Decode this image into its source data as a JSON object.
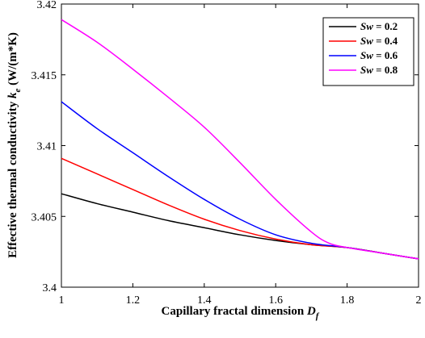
{
  "chart_data": {
    "type": "line",
    "xlabel": {
      "main": "Capillary fractal dimension ",
      "symbol": "D",
      "sub": "f"
    },
    "ylabel": {
      "main": "Effective thermal conductivity ",
      "symbol": "k",
      "sub": "e",
      "unit": " (W/(m*K)"
    },
    "xlim": [
      1,
      2
    ],
    "ylim": [
      3.4,
      3.42
    ],
    "xticks": [
      "1",
      "1.2",
      "1.4",
      "1.6",
      "1.8",
      "2"
    ],
    "yticks": [
      "3.4",
      "3.405",
      "3.41",
      "3.415",
      "3.42"
    ],
    "legend_position": "top-right",
    "series": [
      {
        "name": "Sw = 0.2",
        "label_var": "Sw",
        "label_val": " = 0.2",
        "color": "#000000",
        "x": [
          1.0,
          1.1,
          1.2,
          1.3,
          1.4,
          1.5,
          1.6,
          1.7,
          1.8,
          1.9,
          2.0
        ],
        "y": [
          3.4066,
          3.4059,
          3.4053,
          3.4047,
          3.4042,
          3.4037,
          3.4033,
          3.403,
          3.4028,
          3.4024,
          3.402
        ]
      },
      {
        "name": "Sw = 0.4",
        "label_var": "Sw",
        "label_val": " = 0.4",
        "color": "#ff0000",
        "x": [
          1.0,
          1.1,
          1.2,
          1.3,
          1.4,
          1.5,
          1.6,
          1.7,
          1.8,
          1.9,
          2.0
        ],
        "y": [
          3.4091,
          3.408,
          3.4069,
          3.4058,
          3.4048,
          3.404,
          3.4034,
          3.403,
          3.4028,
          3.4024,
          3.402
        ]
      },
      {
        "name": "Sw = 0.6",
        "label_var": "Sw",
        "label_val": " = 0.6",
        "color": "#0000ff",
        "x": [
          1.0,
          1.1,
          1.2,
          1.3,
          1.4,
          1.5,
          1.6,
          1.7,
          1.8,
          1.9,
          2.0
        ],
        "y": [
          3.4131,
          3.4112,
          3.4095,
          3.4078,
          3.4062,
          3.4048,
          3.4037,
          3.4031,
          3.4028,
          3.4024,
          3.402
        ]
      },
      {
        "name": "Sw = 0.8",
        "label_var": "Sw",
        "label_val": " = 0.8",
        "color": "#ff00ff",
        "x": [
          1.0,
          1.1,
          1.2,
          1.3,
          1.4,
          1.5,
          1.6,
          1.7,
          1.75,
          1.8,
          1.9,
          2.0
        ],
        "y": [
          3.4189,
          3.4173,
          3.4154,
          3.4134,
          3.4113,
          3.4088,
          3.4062,
          3.4039,
          3.4031,
          3.4028,
          3.4024,
          3.402
        ]
      }
    ]
  }
}
